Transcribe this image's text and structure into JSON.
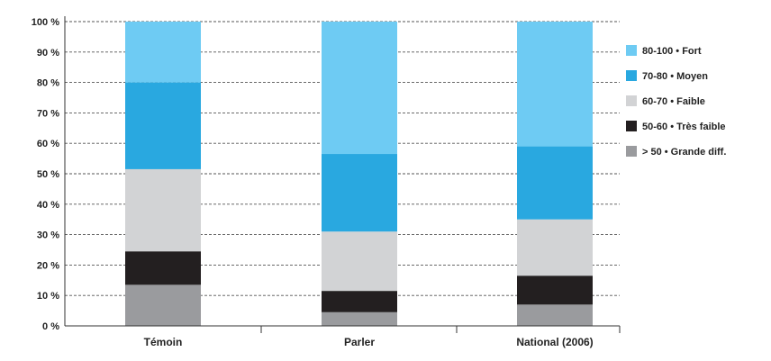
{
  "chart_data": {
    "type": "bar",
    "stacked": true,
    "categories": [
      "Témoin",
      "Parler",
      "National (2006)"
    ],
    "series": [
      {
        "name": "> 50 • Grande diff.",
        "color": "#9a9b9e",
        "values": [
          13.5,
          4.5,
          7.0
        ]
      },
      {
        "name": "50-60 • Très faible",
        "color": "#231f20",
        "values": [
          11.0,
          7.0,
          9.5
        ]
      },
      {
        "name": "60-70 • Faible",
        "color": "#d2d3d5",
        "values": [
          27.0,
          19.5,
          18.5
        ]
      },
      {
        "name": "70-80 • Moyen",
        "color": "#29a8e0",
        "values": [
          28.5,
          25.5,
          24.0
        ]
      },
      {
        "name": "80-100 • Fort",
        "color": "#6ecbf3",
        "values": [
          20.0,
          43.5,
          41.0
        ]
      }
    ],
    "y_ticks": [
      "0 %",
      "10 %",
      "20 %",
      "30 %",
      "40 %",
      "50 %",
      "60 %",
      "70 %",
      "80 %",
      "90 %",
      "100 %"
    ],
    "ylim": [
      0,
      100
    ],
    "grid": true,
    "legend_position": "right",
    "legend_order": [
      "80-100 • Fort",
      "70-80 • Moyen",
      "60-70 • Faible",
      "50-60 • Très faible",
      "> 50 • Grande diff."
    ]
  }
}
